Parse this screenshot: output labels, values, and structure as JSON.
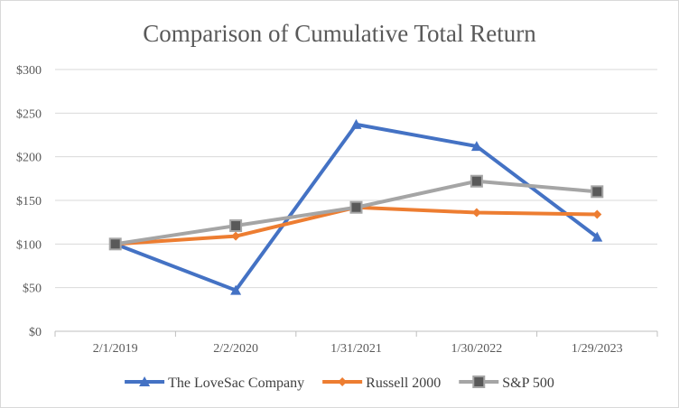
{
  "chart_data": {
    "type": "line",
    "title": "Comparison of Cumulative Total Return",
    "categories": [
      "2/1/2019",
      "2/2/2020",
      "1/31/2021",
      "1/30/2022",
      "1/29/2023"
    ],
    "ylim": [
      0,
      300
    ],
    "yticks": [
      0,
      50,
      100,
      150,
      200,
      250,
      300
    ],
    "ytick_labels": [
      "$0",
      "$50",
      "$100",
      "$150",
      "$200",
      "$250",
      "$300"
    ],
    "xlabel": "",
    "ylabel": "",
    "grid": true,
    "legend_position": "bottom",
    "series": [
      {
        "name": "The LoveSac Company",
        "color": "#4472c4",
        "marker": "triangle",
        "values": [
          100,
          47,
          237,
          212,
          108
        ]
      },
      {
        "name": "Russell 2000",
        "color": "#ed7d31",
        "marker": "diamond",
        "values": [
          100,
          109,
          142,
          136,
          134
        ]
      },
      {
        "name": "S&P 500",
        "color": "#a5a5a5",
        "marker": "square",
        "marker_fill": "#595959",
        "values": [
          100,
          121,
          142,
          172,
          160
        ]
      }
    ]
  }
}
